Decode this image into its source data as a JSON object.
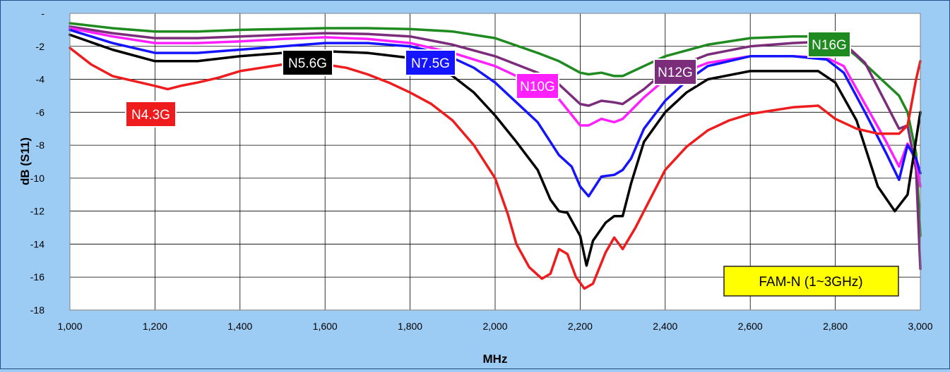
{
  "chart_data": {
    "type": "line",
    "title": "",
    "xlabel": "MHz",
    "ylabel": "dB (S11)",
    "xlim": [
      1000,
      3000
    ],
    "ylim": [
      -18,
      0
    ],
    "grid": true,
    "background": "#9ccbf3",
    "plot_background": "#ffffff",
    "x_ticks": [
      "1,000",
      "1,200",
      "1,400",
      "1,600",
      "1,800",
      "2,000",
      "2,200",
      "2,400",
      "2,600",
      "2,800",
      "3,000"
    ],
    "y_ticks": [
      "-",
      "-2",
      "-4",
      "-6",
      "-8",
      "-10",
      "-12",
      "-14",
      "-16",
      "-18"
    ],
    "annotation": {
      "text": "FAM-N (1~3GHz)",
      "color": "#ffff00"
    },
    "series": [
      {
        "name": "N16G",
        "color": "#1f8a1f",
        "x": [
          1000,
          1100,
          1200,
          1300,
          1400,
          1500,
          1600,
          1700,
          1800,
          1900,
          2000,
          2100,
          2150,
          2200,
          2220,
          2250,
          2280,
          2300,
          2350,
          2400,
          2500,
          2600,
          2700,
          2780,
          2800,
          2850,
          2900,
          2950,
          2970,
          2990,
          3000
        ],
        "y": [
          -0.6,
          -0.9,
          -1.1,
          -1.1,
          -1.0,
          -0.95,
          -0.9,
          -0.9,
          -0.95,
          -1.1,
          -1.5,
          -2.4,
          -2.9,
          -3.6,
          -3.7,
          -3.6,
          -3.8,
          -3.8,
          -3.2,
          -2.6,
          -1.9,
          -1.5,
          -1.4,
          -1.4,
          -1.6,
          -2.6,
          -3.8,
          -5.0,
          -6.0,
          -8.5,
          -13.5
        ]
      },
      {
        "name": "N12G",
        "color": "#7b2c7b",
        "x": [
          1000,
          1100,
          1200,
          1300,
          1400,
          1500,
          1600,
          1700,
          1800,
          1900,
          2000,
          2100,
          2150,
          2200,
          2220,
          2250,
          2280,
          2300,
          2350,
          2400,
          2500,
          2600,
          2700,
          2780,
          2820,
          2870,
          2920,
          2950,
          2970,
          2990,
          3000
        ],
        "y": [
          -0.8,
          -1.2,
          -1.5,
          -1.5,
          -1.4,
          -1.3,
          -1.2,
          -1.25,
          -1.4,
          -1.9,
          -2.6,
          -3.6,
          -4.3,
          -5.5,
          -5.6,
          -5.3,
          -5.4,
          -5.5,
          -4.6,
          -3.5,
          -2.5,
          -2.0,
          -1.8,
          -1.7,
          -1.8,
          -3.0,
          -5.5,
          -7.0,
          -6.8,
          -9.5,
          -15.5
        ]
      },
      {
        "name": "N10G",
        "color": "#ff20ff",
        "x": [
          1000,
          1100,
          1200,
          1300,
          1400,
          1500,
          1600,
          1700,
          1800,
          1900,
          2000,
          2100,
          2150,
          2200,
          2220,
          2250,
          2280,
          2300,
          2350,
          2400,
          2500,
          2600,
          2700,
          2780,
          2820,
          2870,
          2920,
          2950,
          2970,
          2990,
          3000
        ],
        "y": [
          -0.9,
          -1.4,
          -1.8,
          -1.8,
          -1.7,
          -1.55,
          -1.45,
          -1.55,
          -1.8,
          -2.4,
          -3.2,
          -4.4,
          -5.2,
          -6.8,
          -6.8,
          -6.4,
          -6.6,
          -6.4,
          -5.1,
          -4.0,
          -3.0,
          -2.6,
          -2.6,
          -2.7,
          -3.2,
          -5.5,
          -7.8,
          -9.3,
          -7.9,
          -9.0,
          -10.5
        ]
      },
      {
        "name": "N7.5G",
        "color": "#1414ff",
        "x": [
          1000,
          1100,
          1200,
          1300,
          1400,
          1500,
          1600,
          1700,
          1800,
          1850,
          1900,
          1950,
          2000,
          2050,
          2100,
          2150,
          2180,
          2200,
          2220,
          2250,
          2280,
          2300,
          2320,
          2350,
          2400,
          2450,
          2500,
          2600,
          2700,
          2780,
          2820,
          2870,
          2920,
          2950,
          2970,
          2990,
          3000
        ],
        "y": [
          -1.0,
          -1.8,
          -2.4,
          -2.4,
          -2.2,
          -2.0,
          -1.8,
          -1.8,
          -2.0,
          -2.3,
          -2.7,
          -3.3,
          -4.2,
          -5.4,
          -6.6,
          -8.6,
          -9.3,
          -10.5,
          -11.1,
          -9.9,
          -9.8,
          -9.5,
          -8.8,
          -7.0,
          -5.3,
          -4.1,
          -3.2,
          -2.6,
          -2.6,
          -2.8,
          -3.6,
          -6.0,
          -8.5,
          -10.1,
          -8.0,
          -8.8,
          -9.7
        ]
      },
      {
        "name": "N5.6G",
        "color": "#000000",
        "x": [
          1000,
          1100,
          1200,
          1300,
          1400,
          1500,
          1600,
          1700,
          1800,
          1850,
          1900,
          1950,
          2000,
          2050,
          2100,
          2130,
          2150,
          2170,
          2200,
          2215,
          2230,
          2260,
          2280,
          2300,
          2320,
          2350,
          2400,
          2450,
          2500,
          2600,
          2700,
          2760,
          2800,
          2850,
          2900,
          2940,
          2970,
          3000
        ],
        "y": [
          -1.3,
          -2.2,
          -2.9,
          -2.9,
          -2.6,
          -2.4,
          -2.3,
          -2.4,
          -2.7,
          -3.1,
          -3.8,
          -4.8,
          -6.2,
          -7.8,
          -9.5,
          -11.3,
          -12.0,
          -12.1,
          -13.5,
          -15.3,
          -13.8,
          -12.7,
          -12.3,
          -12.3,
          -10.3,
          -7.8,
          -6.0,
          -4.8,
          -4.0,
          -3.5,
          -3.5,
          -3.5,
          -4.2,
          -6.5,
          -10.5,
          -12.0,
          -11.0,
          -6.0
        ]
      },
      {
        "name": "N4.3G",
        "color": "#ee1c1c",
        "x": [
          1000,
          1050,
          1100,
          1150,
          1200,
          1230,
          1260,
          1300,
          1350,
          1400,
          1450,
          1500,
          1550,
          1600,
          1650,
          1700,
          1750,
          1800,
          1850,
          1900,
          1950,
          2000,
          2030,
          2050,
          2080,
          2110,
          2130,
          2150,
          2170,
          2190,
          2210,
          2230,
          2260,
          2280,
          2300,
          2330,
          2370,
          2400,
          2450,
          2500,
          2550,
          2600,
          2650,
          2700,
          2760,
          2800,
          2850,
          2900,
          2950,
          2970,
          2990,
          3000
        ],
        "y": [
          -2.1,
          -3.1,
          -3.8,
          -4.1,
          -4.4,
          -4.6,
          -4.4,
          -4.2,
          -3.9,
          -3.5,
          -3.3,
          -3.1,
          -3.0,
          -3.1,
          -3.3,
          -3.7,
          -4.2,
          -4.8,
          -5.5,
          -6.5,
          -8.0,
          -10.0,
          -12.2,
          -14.0,
          -15.4,
          -16.1,
          -15.8,
          -14.3,
          -14.6,
          -16.0,
          -16.7,
          -16.4,
          -14.5,
          -13.6,
          -14.3,
          -13.0,
          -11.0,
          -9.5,
          -8.1,
          -7.1,
          -6.5,
          -6.1,
          -5.9,
          -5.7,
          -5.6,
          -6.4,
          -7.0,
          -7.3,
          -7.3,
          -6.8,
          -4.0,
          -2.9
        ]
      }
    ],
    "series_labels": [
      {
        "series": "N16G",
        "text": "N16G",
        "bg": "#1f8a1f",
        "text_color": "#ffffff"
      },
      {
        "series": "N12G",
        "text": "N12G",
        "bg": "#7b2c7b",
        "text_color": "#ffffff"
      },
      {
        "series": "N10G",
        "text": "N10G",
        "bg": "#ff20ff",
        "text_color": "#ffffff"
      },
      {
        "series": "N7.5G",
        "text": "N7.5G",
        "bg": "#1414ff",
        "text_color": "#ffffff"
      },
      {
        "series": "N5.6G",
        "text": "N5.6G",
        "bg": "#000000",
        "text_color": "#ffffff"
      },
      {
        "series": "N4.3G",
        "text": "N4.3G",
        "bg": "#ee1c1c",
        "text_color": "#ffffff"
      }
    ]
  }
}
